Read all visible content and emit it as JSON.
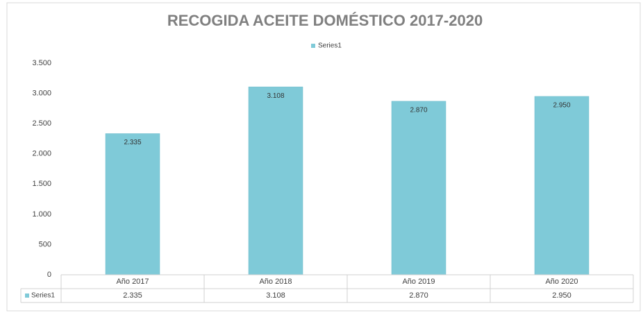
{
  "chart_data": {
    "type": "bar",
    "title": "RECOGIDA ACEITE DOMÉSTICO 2017-2020",
    "categories": [
      "Año 2017",
      "Año 2018",
      "Año 2019",
      "Año 2020"
    ],
    "series": [
      {
        "name": "Series1",
        "color": "#7fcad8",
        "values": [
          2335,
          3108,
          2870,
          2950
        ],
        "value_labels": [
          "2.335",
          "3.108",
          "2.870",
          "2.950"
        ]
      }
    ],
    "ylim": [
      0,
      3500
    ],
    "yticks": [
      0,
      500,
      {
        "value": 1000,
        "label": "1.000"
      },
      {
        "value": 1500,
        "label": "1.500"
      },
      {
        "value": 2000,
        "label": "2.000"
      },
      {
        "value": 2500,
        "label": "2.500"
      },
      {
        "value": 3000,
        "label": "3.000"
      },
      {
        "value": 3500,
        "label": "3.500"
      }
    ],
    "grid": false,
    "legend": "top",
    "data_table": true
  }
}
